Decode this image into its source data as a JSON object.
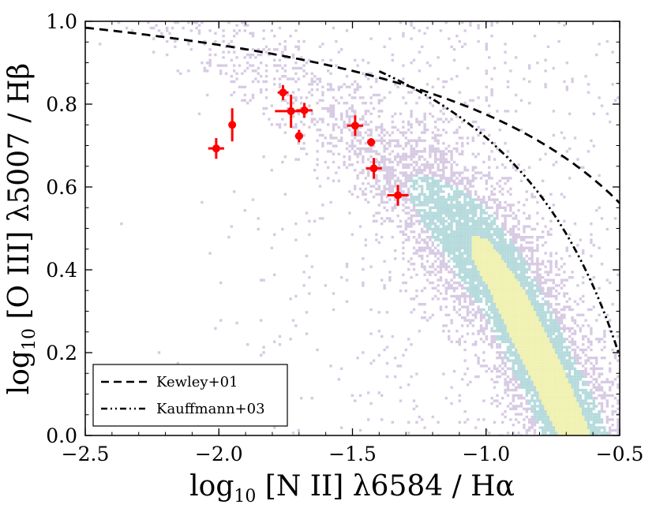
{
  "chart_data": {
    "type": "scatter",
    "title": "",
    "xlabel": {
      "prefix": "log",
      "sub": "10",
      "main": " [N II] λ6584 / Hα"
    },
    "ylabel": {
      "prefix": "log",
      "sub": "10",
      "main": " [O III] λ5007 / Hβ"
    },
    "xlim": [
      -2.5,
      -0.5
    ],
    "ylim": [
      0.0,
      1.0
    ],
    "xticks": [
      -2.5,
      -2.0,
      -1.5,
      -1.0,
      -0.5
    ],
    "xtick_labels": [
      "−2.5",
      "−2.0",
      "−1.5",
      "−1.0",
      "−0.5"
    ],
    "yticks": [
      0.0,
      0.2,
      0.4,
      0.6,
      0.8,
      1.0
    ],
    "ytick_labels": [
      "0.0",
      "0.2",
      "0.4",
      "0.6",
      "0.8",
      "1.0"
    ],
    "grid": false,
    "legend_position": "bottom-left",
    "legend": [
      {
        "label": "Kewley+01",
        "style": "dashed"
      },
      {
        "label": "Kauffmann+03",
        "style": "dash-dot-dot"
      }
    ],
    "curves": {
      "kewley01": {
        "x0": 0.47,
        "a": 0.61,
        "b": 1.19,
        "x_range": [
          -2.5,
          -0.5
        ]
      },
      "kauffmann03": {
        "x0": 0.05,
        "a": 0.61,
        "b": 1.3,
        "x_range": [
          -1.4,
          -0.5
        ]
      }
    },
    "background": {
      "kind": "density-2d-histogram",
      "ridge": [
        {
          "x": -1.6,
          "y": 0.78
        },
        {
          "x": -1.2,
          "y": 0.55
        },
        {
          "x": -1.0,
          "y": 0.42
        },
        {
          "x": -0.85,
          "y": 0.25
        },
        {
          "x": -0.7,
          "y": 0.05
        }
      ],
      "colors": {
        "low": "#c9b8d9",
        "mid": "#a8d4d6",
        "high": "#eef0a8"
      }
    },
    "points": [
      {
        "x": -2.01,
        "y": 0.693,
        "xerr": 0.03,
        "yerr": 0.025
      },
      {
        "x": -1.95,
        "y": 0.75,
        "xerr": 0.01,
        "yerr": 0.04
      },
      {
        "x": -1.76,
        "y": 0.828,
        "xerr": 0.02,
        "yerr": 0.018
      },
      {
        "x": -1.73,
        "y": 0.783,
        "xerr": 0.06,
        "yerr": 0.04
      },
      {
        "x": -1.7,
        "y": 0.723,
        "xerr": 0.015,
        "yerr": 0.015
      },
      {
        "x": -1.68,
        "y": 0.785,
        "xerr": 0.03,
        "yerr": 0.018
      },
      {
        "x": -1.49,
        "y": 0.748,
        "xerr": 0.03,
        "yerr": 0.025
      },
      {
        "x": -1.43,
        "y": 0.708,
        "xerr": 0.015,
        "yerr": 0.01
      },
      {
        "x": -1.42,
        "y": 0.645,
        "xerr": 0.03,
        "yerr": 0.025
      },
      {
        "x": -1.33,
        "y": 0.58,
        "xerr": 0.04,
        "yerr": 0.025
      }
    ],
    "point_color": "#ff0000",
    "curve_color": "#000000"
  }
}
